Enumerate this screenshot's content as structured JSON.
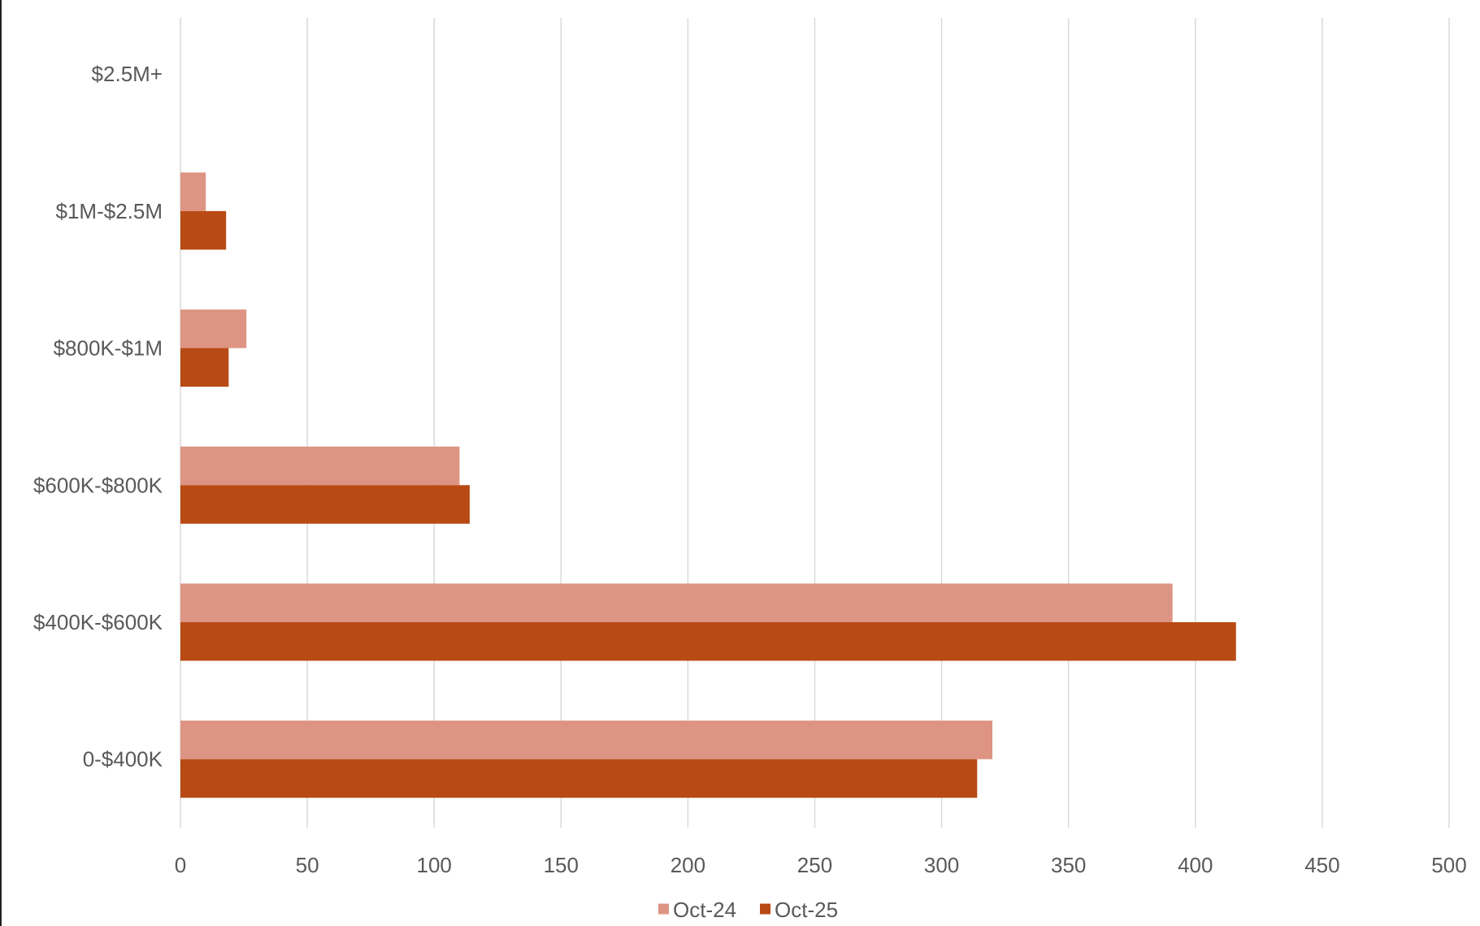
{
  "chart_data": {
    "type": "bar",
    "orientation": "horizontal",
    "title": "",
    "xlabel": "",
    "ylabel": "",
    "categories": [
      "0-$400K",
      "$400K-$600K",
      "$600K-$800K",
      "$800K-$1M",
      "$1M-$2.5M",
      "$2.5M+"
    ],
    "series": [
      {
        "name": "Oct-24",
        "color": "#de9483",
        "values": [
          320,
          391,
          110,
          26,
          10,
          0
        ]
      },
      {
        "name": "Oct-25",
        "color": "#b84a14",
        "values": [
          314,
          416,
          114,
          19,
          18,
          0
        ]
      }
    ],
    "xlim": [
      0,
      500
    ],
    "xticks": [
      0,
      50,
      100,
      150,
      200,
      250,
      300,
      350,
      400,
      450,
      500
    ],
    "grid": true,
    "legend_position": "bottom",
    "colors": {
      "gridline": "#d9d9d9",
      "text": "#595959"
    }
  }
}
